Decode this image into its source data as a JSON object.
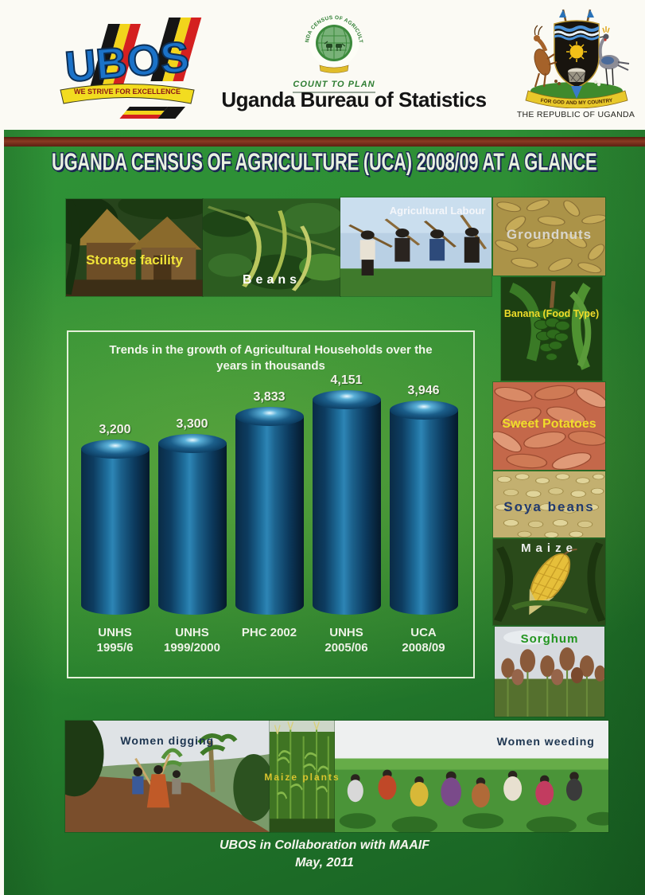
{
  "header": {
    "ubos_logo": {
      "acronym": "UBOS",
      "motto": "WE STRIVE FOR EXCELLENCE"
    },
    "census_logo": {
      "ring_text": "UGANDA CENSUS OF AGRICULTURE",
      "slogan": "COUNT TO PLAN"
    },
    "org_title": "Uganda Bureau of Statistics",
    "coat_of_arms": {
      "motto": "FOR GOD AND MY COUNTRY",
      "caption": "THE REPUBLIC OF UGANDA"
    }
  },
  "banner": {
    "title": "UGANDA CENSUS OF AGRICULTURE (UCA) 2008/09 AT A GLANCE"
  },
  "photos": {
    "top": [
      {
        "label": "Storage facility",
        "label_color": "#f0e438"
      },
      {
        "label": "Beans",
        "label_color": "#ffffff"
      },
      {
        "label": "Agricultural Labour",
        "label_color": "#f4f6fa"
      }
    ],
    "side": [
      {
        "label": "Groundnuts",
        "label_color": "#d9d6cd"
      },
      {
        "label": "Banana (Food Type)",
        "label_color": "#f0dd2a"
      },
      {
        "label": "Sweet Potatoes",
        "label_color": "#f0dd2a"
      },
      {
        "label": "Soya beans",
        "label_color": "#223a6e"
      },
      {
        "label": "Maize",
        "label_color": "#ededed"
      },
      {
        "label": "Sorghum",
        "label_color": "#22951f"
      }
    ],
    "bottom": [
      {
        "label": "Women digging",
        "label_color": "#1d3550"
      },
      {
        "label": "Maize plants",
        "label_color": "#d8c42e"
      },
      {
        "label": "Women weeding",
        "label_color": "#1d3550"
      }
    ]
  },
  "chart_data": {
    "type": "bar",
    "title": "Trends in the growth of Agricultural Households over the years in thousands",
    "title_lines": [
      "Trends in the growth of Agricultural Households over the",
      "years in thousands"
    ],
    "categories": [
      "UNHS 1995/6",
      "UNHS 1999/2000",
      "PHC 2002",
      "UNHS 2005/06",
      "UCA 2008/09"
    ],
    "category_lines": [
      [
        "UNHS",
        "1995/6"
      ],
      [
        "UNHS",
        "1999/2000"
      ],
      [
        "PHC 2002",
        ""
      ],
      [
        "UNHS",
        "2005/06"
      ],
      [
        "UCA",
        "2008/09"
      ]
    ],
    "values": [
      3200,
      3300,
      3833,
      4151,
      3946
    ],
    "value_labels": [
      "3,200",
      "3,300",
      "3,833",
      "4,151",
      "3,946"
    ],
    "unit": "thousands of households",
    "bar_style": "3d-cylinder",
    "bar_color": "#0b3a5c",
    "ylim": [
      0,
      4400
    ],
    "gridlines": false,
    "legend": "none"
  },
  "footer": {
    "line1": "UBOS in Collaboration with MAAIF",
    "line2": "May, 2011"
  },
  "colors": {
    "body_green": "#2d8c33",
    "divider_maroon": "#7b2a18",
    "banner_text": "#e9f1e0",
    "bar_blue": "#0b3a5c",
    "value_label_text": "#f3f2e9"
  }
}
